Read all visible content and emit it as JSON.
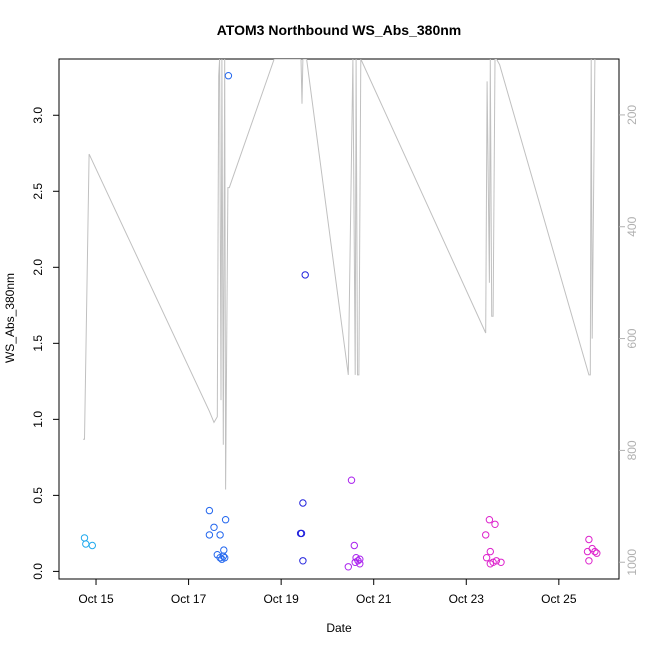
{
  "chart_data": {
    "type": "scatter",
    "title": "ATOM3 Northbound WS_Abs_380nm",
    "xlabel": "Date",
    "ylabel": "WS_Abs_380nm",
    "x_units": "days (Oct date)",
    "xlim": [
      14.2,
      26.3
    ],
    "ylim": [
      -0.05,
      3.37
    ],
    "x_ticks": [
      {
        "value": 15,
        "label": "Oct 15"
      },
      {
        "value": 17,
        "label": "Oct 17"
      },
      {
        "value": 19,
        "label": "Oct 19"
      },
      {
        "value": 21,
        "label": "Oct 21"
      },
      {
        "value": 23,
        "label": "Oct 23"
      },
      {
        "value": 25,
        "label": "Oct 25"
      }
    ],
    "y_ticks": [
      {
        "value": 0.0,
        "label": "0.0"
      },
      {
        "value": 0.5,
        "label": "0.5"
      },
      {
        "value": 1.0,
        "label": "1.0"
      },
      {
        "value": 1.5,
        "label": "1.5"
      },
      {
        "value": 2.0,
        "label": "2.0"
      },
      {
        "value": 2.5,
        "label": "2.5"
      },
      {
        "value": 3.0,
        "label": "3.0"
      }
    ],
    "secondary_axis": {
      "side": "right",
      "reversed": true,
      "lim": [
        100,
        1030
      ],
      "ticks": [
        {
          "value": 200,
          "label": "200"
        },
        {
          "value": 400,
          "label": "400"
        },
        {
          "value": 600,
          "label": "600"
        },
        {
          "value": 800,
          "label": "800"
        },
        {
          "value": 1000,
          "label": "1000"
        }
      ],
      "color": "#b0b0b0"
    },
    "grid": false,
    "points": [
      {
        "x": 14.75,
        "y": 0.22,
        "color": "#22aaee"
      },
      {
        "x": 14.78,
        "y": 0.18,
        "color": "#22aaee"
      },
      {
        "x": 14.92,
        "y": 0.17,
        "color": "#22aaee"
      },
      {
        "x": 17.45,
        "y": 0.4,
        "color": "#2266ee"
      },
      {
        "x": 17.45,
        "y": 0.24,
        "color": "#2266ee"
      },
      {
        "x": 17.55,
        "y": 0.29,
        "color": "#2266ee"
      },
      {
        "x": 17.62,
        "y": 0.11,
        "color": "#2266ee"
      },
      {
        "x": 17.68,
        "y": 0.24,
        "color": "#2266ee"
      },
      {
        "x": 17.68,
        "y": 0.09,
        "color": "#2266ee"
      },
      {
        "x": 17.72,
        "y": 0.08,
        "color": "#2266ee"
      },
      {
        "x": 17.75,
        "y": 0.1,
        "color": "#2266ee"
      },
      {
        "x": 17.76,
        "y": 0.14,
        "color": "#2266ee"
      },
      {
        "x": 17.78,
        "y": 0.09,
        "color": "#2266ee"
      },
      {
        "x": 17.8,
        "y": 0.34,
        "color": "#2266ee"
      },
      {
        "x": 17.86,
        "y": 3.26,
        "color": "#2266ee"
      },
      {
        "x": 19.42,
        "y": 0.25,
        "color": "#2222dd"
      },
      {
        "x": 19.44,
        "y": 0.25,
        "color": "#2222dd"
      },
      {
        "x": 19.47,
        "y": 0.45,
        "color": "#2222dd"
      },
      {
        "x": 19.47,
        "y": 0.07,
        "color": "#2222dd"
      },
      {
        "x": 19.52,
        "y": 1.95,
        "color": "#2222dd"
      },
      {
        "x": 20.45,
        "y": 0.03,
        "color": "#aa22ee"
      },
      {
        "x": 20.52,
        "y": 0.6,
        "color": "#aa22ee"
      },
      {
        "x": 20.58,
        "y": 0.17,
        "color": "#aa22ee"
      },
      {
        "x": 20.6,
        "y": 0.06,
        "color": "#aa22ee"
      },
      {
        "x": 20.62,
        "y": 0.09,
        "color": "#aa22ee"
      },
      {
        "x": 20.66,
        "y": 0.07,
        "color": "#aa22ee"
      },
      {
        "x": 20.7,
        "y": 0.05,
        "color": "#aa22ee"
      },
      {
        "x": 20.7,
        "y": 0.08,
        "color": "#aa22ee"
      },
      {
        "x": 23.42,
        "y": 0.24,
        "color": "#dd22cc"
      },
      {
        "x": 23.44,
        "y": 0.09,
        "color": "#dd22cc"
      },
      {
        "x": 23.5,
        "y": 0.34,
        "color": "#dd22cc"
      },
      {
        "x": 23.52,
        "y": 0.13,
        "color": "#dd22cc"
      },
      {
        "x": 23.52,
        "y": 0.05,
        "color": "#dd22cc"
      },
      {
        "x": 23.58,
        "y": 0.06,
        "color": "#dd22cc"
      },
      {
        "x": 23.62,
        "y": 0.31,
        "color": "#dd22cc"
      },
      {
        "x": 23.65,
        "y": 0.07,
        "color": "#dd22cc"
      },
      {
        "x": 23.75,
        "y": 0.06,
        "color": "#dd22cc"
      },
      {
        "x": 25.62,
        "y": 0.13,
        "color": "#dd22cc"
      },
      {
        "x": 25.65,
        "y": 0.21,
        "color": "#dd22cc"
      },
      {
        "x": 25.65,
        "y": 0.07,
        "color": "#dd22cc"
      },
      {
        "x": 25.72,
        "y": 0.15,
        "color": "#dd22cc"
      },
      {
        "x": 25.78,
        "y": 0.13,
        "color": "#dd22cc"
      },
      {
        "x": 25.82,
        "y": 0.12,
        "color": "#dd22cc"
      }
    ],
    "secondary_series": {
      "name": "",
      "color": "#c0c0c0",
      "x": [
        14.72,
        14.75,
        14.85,
        17.45,
        17.55,
        17.62,
        17.65,
        17.67,
        17.7,
        17.72,
        17.75,
        17.78,
        17.8,
        17.85,
        17.88,
        18.85,
        19.4,
        19.43,
        19.45,
        19.47,
        19.5,
        19.55,
        20.45,
        20.55,
        20.6,
        20.62,
        20.65,
        20.68,
        20.72,
        23.42,
        23.45,
        23.5,
        23.52,
        23.55,
        23.58,
        23.62,
        23.65,
        23.72,
        25.65,
        25.68,
        25.7,
        25.72,
        25.78
      ],
      "y": [
        780,
        780,
        270,
        730,
        750,
        740,
        130,
        100,
        710,
        100,
        790,
        100,
        870,
        330,
        330,
        100,
        100,
        100,
        180,
        100,
        100,
        100,
        665,
        100,
        665,
        100,
        665,
        665,
        100,
        590,
        140,
        500,
        100,
        560,
        560,
        100,
        100,
        110,
        665,
        665,
        100,
        600,
        100
      ]
    }
  }
}
